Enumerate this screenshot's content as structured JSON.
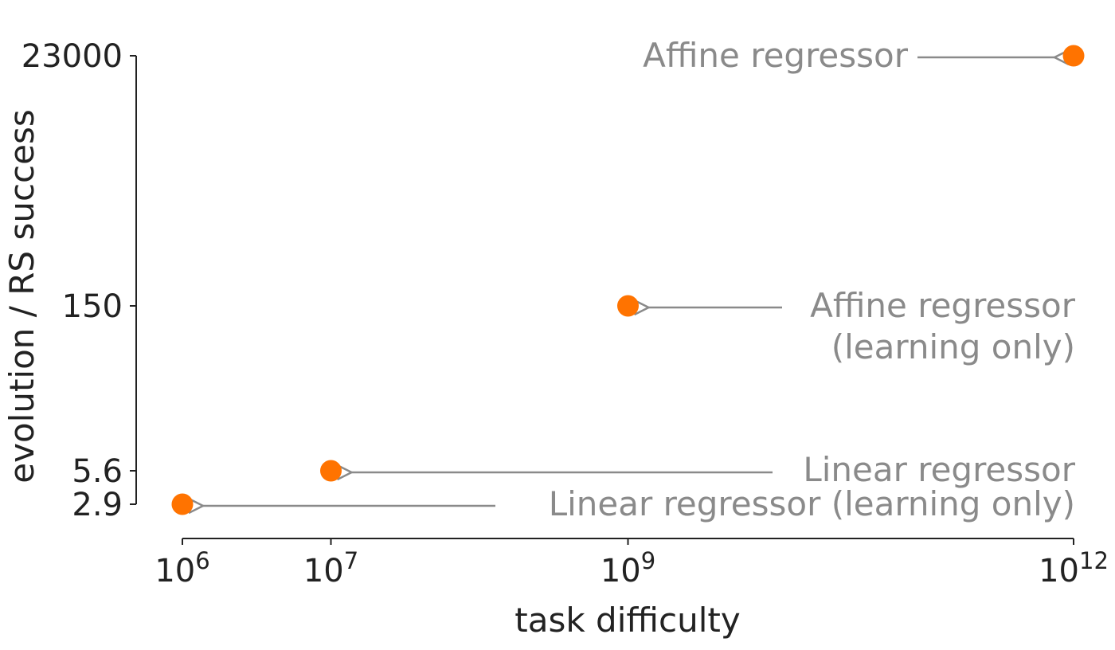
{
  "chart_data": {
    "type": "scatter",
    "xlabel": "task difficulty",
    "ylabel": "evolution / RS success",
    "x_scale": "log",
    "y_scale": "categorical-ticks",
    "x_ticks": [
      {
        "value": 1000000,
        "base": "10",
        "exp": "6"
      },
      {
        "value": 10000000,
        "base": "10",
        "exp": "7"
      },
      {
        "value": 1000000000,
        "base": "10",
        "exp": "9"
      },
      {
        "value": 1000000000000,
        "base": "10",
        "exp": "12"
      }
    ],
    "y_ticks": [
      {
        "value": 2.9,
        "label": "2.9"
      },
      {
        "value": 5.6,
        "label": "5.6"
      },
      {
        "value": 150,
        "label": "150"
      },
      {
        "value": 23000,
        "label": "23000"
      }
    ],
    "points": [
      {
        "x": 1000000,
        "y": 2.9,
        "label_lines": [
          "Linear regressor (learning only)"
        ]
      },
      {
        "x": 10000000,
        "y": 5.6,
        "label_lines": [
          "Linear regressor"
        ]
      },
      {
        "x": 1000000000,
        "y": 150,
        "label_lines": [
          "Affine regressor",
          "(learning only)"
        ]
      },
      {
        "x": 1000000000000,
        "y": 23000,
        "label_lines": [
          "Affine regressor"
        ]
      }
    ],
    "grid": false,
    "marker_color": "#ff7300",
    "annotation_color": "#8a8a8a"
  }
}
